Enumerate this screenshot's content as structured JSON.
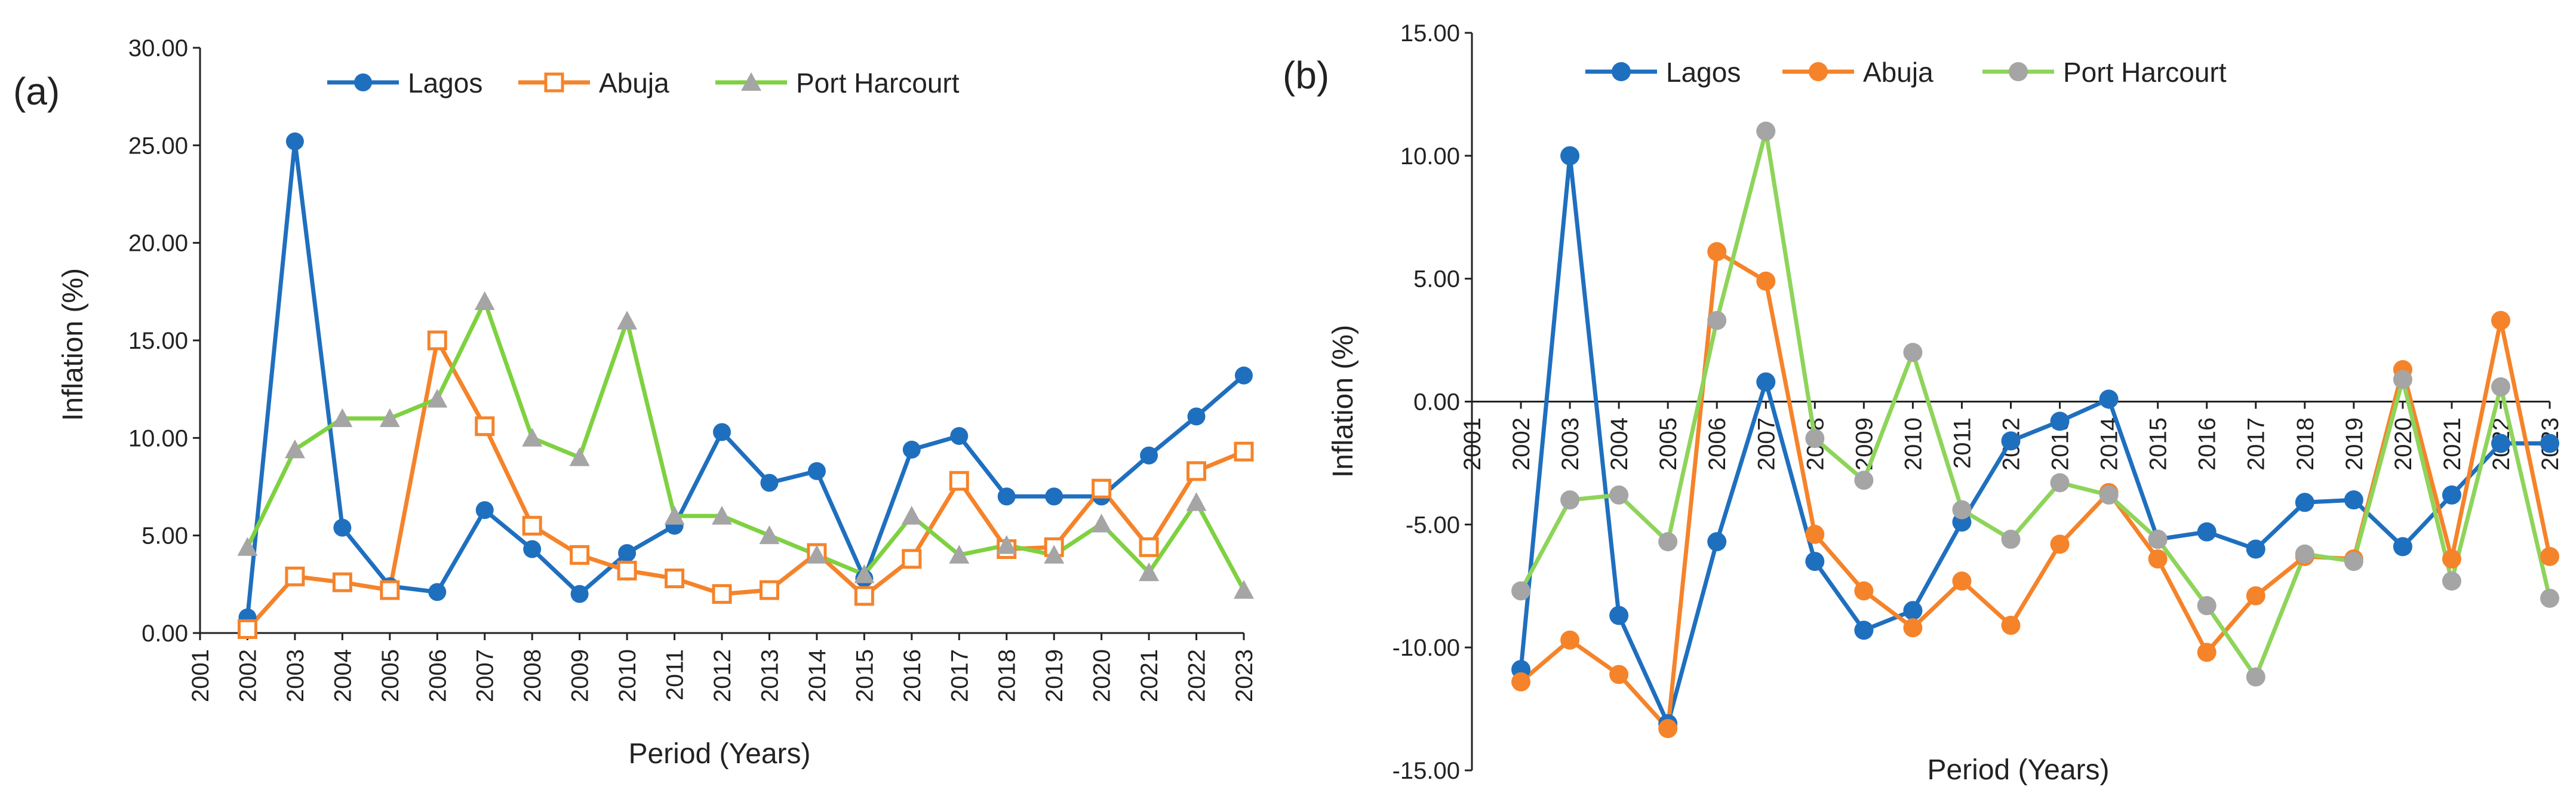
{
  "figure": {
    "colors": {
      "lagos": "#1f6fbf",
      "abuja": "#f5832a",
      "port_harcourt_a": "#7ed140",
      "port_harcourt_marker_a": "#a5a5a5",
      "port_harcourt_b": "#8ed45a",
      "port_harcourt_marker_b": "#a5a5a5"
    }
  },
  "chart_data": [
    {
      "id": "a",
      "panel_label": "(a)",
      "type": "line",
      "xlabel": "Period (Years)",
      "ylabel": "Inflation (%)",
      "categories": [
        "2001",
        "2002",
        "2003",
        "2004",
        "2005",
        "2006",
        "2007",
        "2008",
        "2009",
        "2010",
        "2011",
        "2012",
        "2013",
        "2014",
        "2015",
        "2016",
        "2017",
        "2018",
        "2019",
        "2020",
        "2021",
        "2022",
        "2023"
      ],
      "ylim": [
        0,
        30
      ],
      "yticks": [
        "0.00",
        "5.00",
        "10.00",
        "15.00",
        "20.00",
        "25.00",
        "30.00"
      ],
      "legend": [
        "Lagos",
        "Abuja",
        "Port Harcourt"
      ],
      "series": [
        {
          "name": "Lagos",
          "marker": "circle",
          "values": [
            null,
            0.8,
            25.2,
            5.4,
            2.4,
            2.1,
            6.3,
            4.3,
            2.0,
            4.1,
            5.5,
            10.3,
            7.7,
            8.3,
            2.8,
            9.4,
            10.1,
            7.0,
            7.0,
            7.0,
            9.1,
            11.1,
            13.2
          ]
        },
        {
          "name": "Abuja",
          "marker": "square-open",
          "values": [
            null,
            0.2,
            2.9,
            2.6,
            2.2,
            15.0,
            10.6,
            5.5,
            4.0,
            3.2,
            2.8,
            2.0,
            2.2,
            4.1,
            1.9,
            3.8,
            7.8,
            4.3,
            4.4,
            7.4,
            4.4,
            8.3,
            9.3
          ]
        },
        {
          "name": "Port Harcourt",
          "marker": "triangle",
          "values": [
            null,
            4.4,
            9.4,
            11.0,
            11.0,
            12.0,
            17.0,
            10.0,
            9.0,
            16.0,
            6.0,
            6.0,
            5.0,
            4.0,
            3.0,
            6.0,
            4.0,
            4.5,
            4.0,
            5.6,
            3.1,
            6.7,
            2.2
          ]
        }
      ]
    },
    {
      "id": "b",
      "panel_label": "(b)",
      "type": "line",
      "xlabel": "Period (Years)",
      "ylabel": "Inflation (%)",
      "categories": [
        "2001",
        "2002",
        "2003",
        "2004",
        "2005",
        "2006",
        "2007",
        "2008",
        "2009",
        "2010",
        "2011",
        "2012",
        "2013",
        "2014",
        "2015",
        "2016",
        "2017",
        "2018",
        "2019",
        "2020",
        "2021",
        "2022",
        "2023"
      ],
      "ylim": [
        -15,
        15
      ],
      "yticks": [
        "-15.00",
        "-10.00",
        "-5.00",
        "0.00",
        "5.00",
        "10.00",
        "15.00"
      ],
      "legend": [
        "Lagos",
        "Abuja",
        "Port Harcourt"
      ],
      "series": [
        {
          "name": "Lagos",
          "marker": "circle",
          "values": [
            null,
            -10.9,
            10.0,
            -8.7,
            -13.1,
            -5.7,
            0.8,
            -6.5,
            -9.3,
            -8.5,
            -4.9,
            -1.6,
            -0.8,
            0.1,
            -5.6,
            -5.3,
            -6.0,
            -4.1,
            -4.0,
            -5.9,
            -3.8,
            -1.7,
            -1.7
          ]
        },
        {
          "name": "Abuja",
          "marker": "circle",
          "values": [
            null,
            -11.4,
            -9.7,
            -11.1,
            -13.3,
            6.1,
            4.9,
            -5.4,
            -7.7,
            -9.2,
            -7.3,
            -9.1,
            -5.8,
            -3.7,
            -6.4,
            -10.2,
            -7.9,
            -6.3,
            -6.4,
            1.3,
            -6.4,
            3.3,
            -6.3
          ]
        },
        {
          "name": "Port Harcourt",
          "marker": "circle",
          "values": [
            null,
            -7.7,
            -4.0,
            -3.8,
            -5.7,
            3.3,
            11.0,
            -1.5,
            -3.2,
            2.0,
            -4.4,
            -5.6,
            -3.3,
            -3.8,
            -5.6,
            -8.3,
            -11.2,
            -6.2,
            -6.5,
            0.9,
            -7.3,
            0.6,
            -8.0
          ]
        }
      ]
    }
  ]
}
